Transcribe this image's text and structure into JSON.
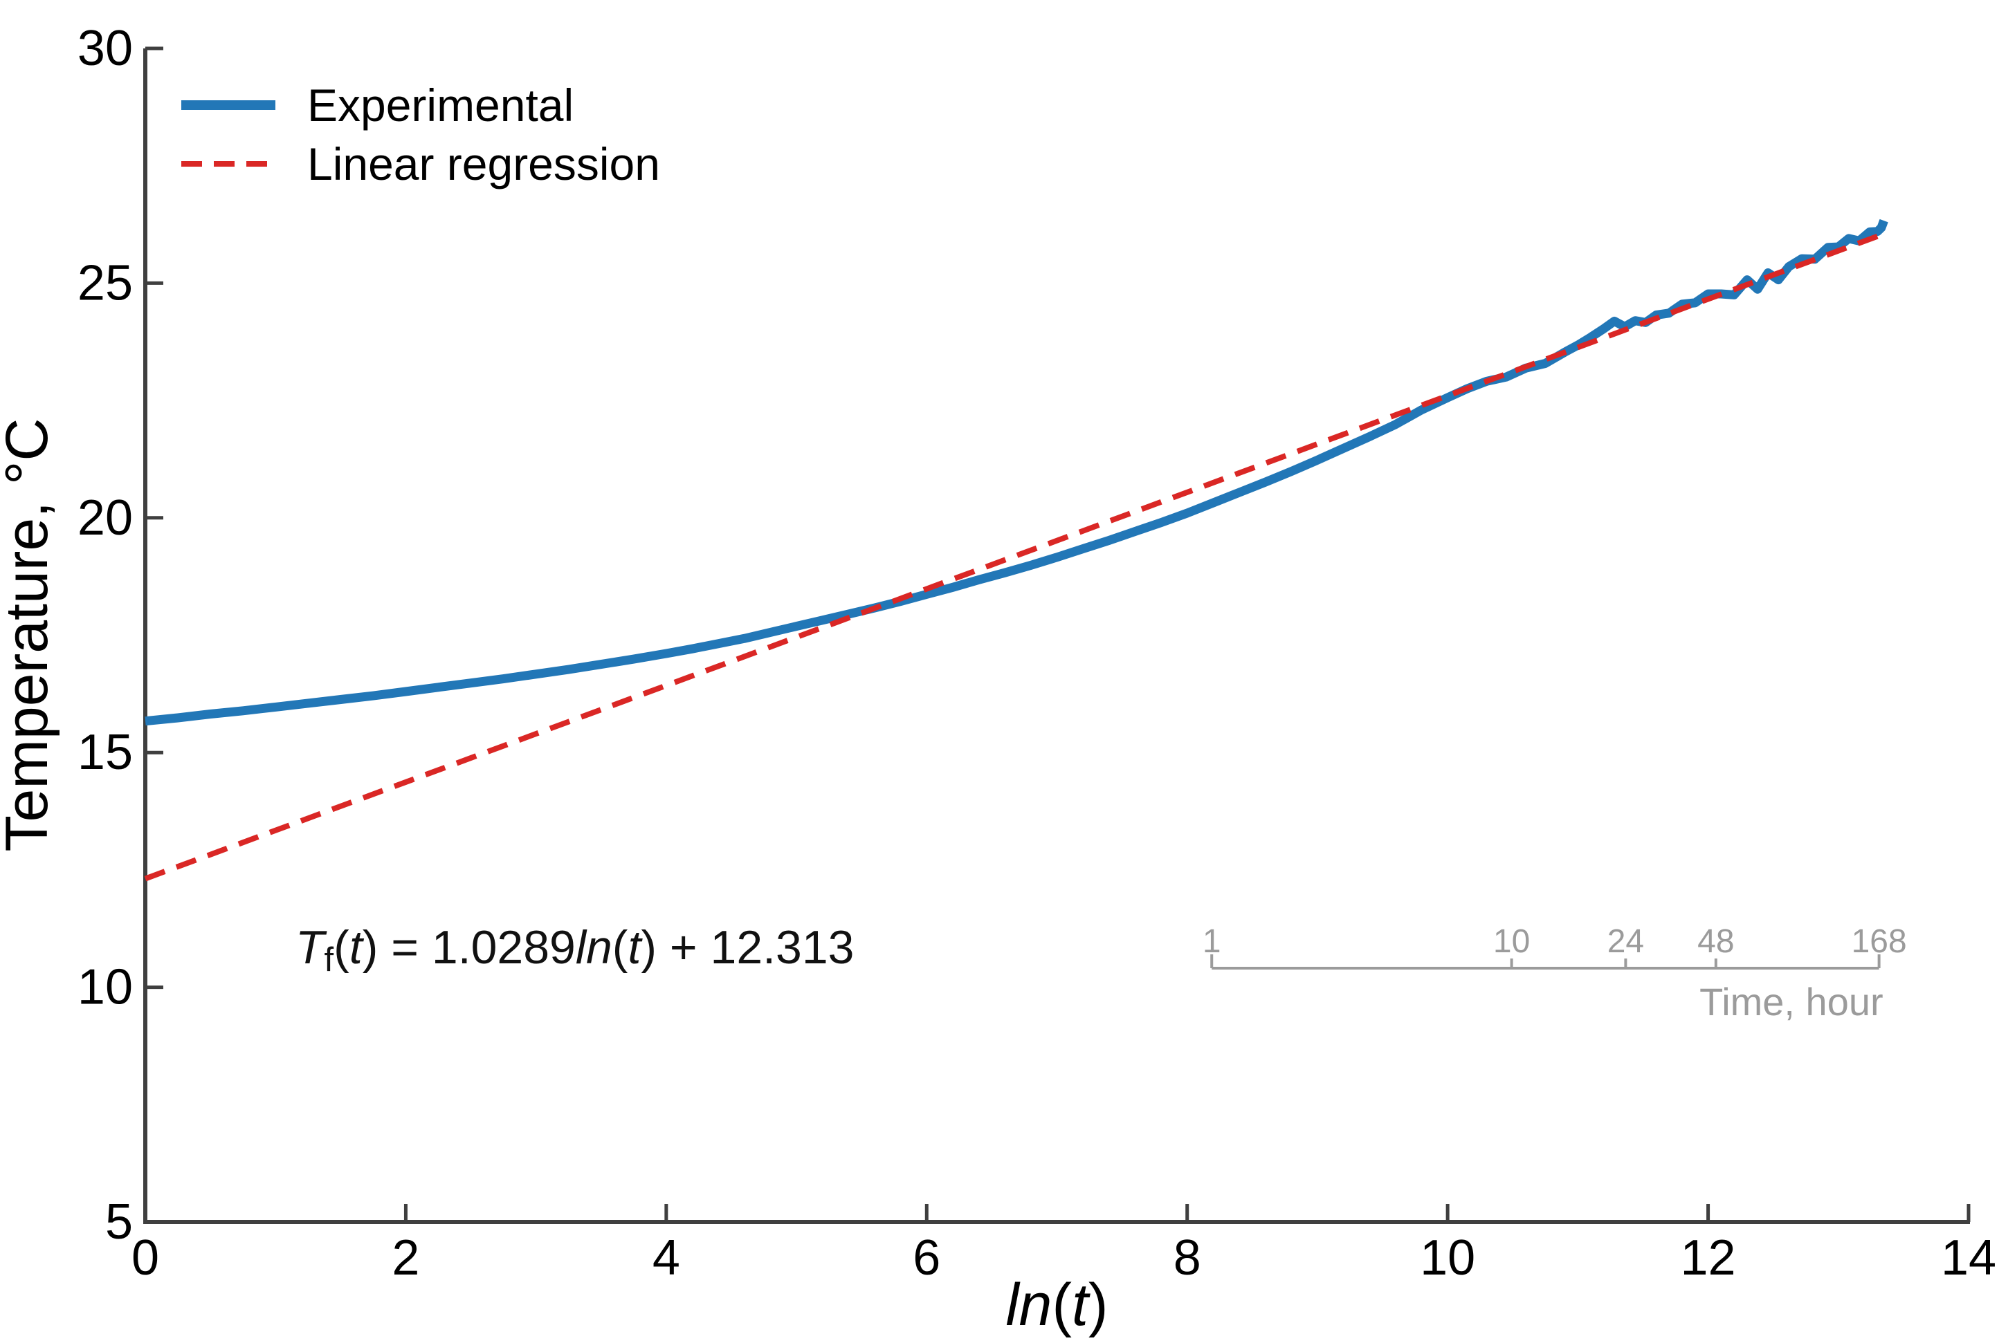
{
  "chart_data": {
    "type": "line",
    "title": "",
    "xlabel_parts": {
      "ln": "ln",
      "lp": "(",
      "t": "t",
      "rp": ")"
    },
    "ylabel": "Temperature, °C",
    "xlim": [
      0,
      14
    ],
    "ylim": [
      5,
      30
    ],
    "xticks": [
      0,
      2,
      4,
      6,
      8,
      10,
      12,
      14
    ],
    "yticks": [
      5,
      10,
      15,
      20,
      25,
      30
    ],
    "grid": false,
    "legend": {
      "position": "upper-left",
      "entries": [
        {
          "label": "Experimental",
          "style": "solid",
          "color": "#2277b7"
        },
        {
          "label": "Linear regression",
          "style": "dashed",
          "color": "#da2725"
        }
      ]
    },
    "series": [
      {
        "name": "Experimental",
        "type": "line",
        "color": "#2277b7",
        "points": [
          [
            0,
            15.67
          ],
          [
            0.25,
            15.74
          ],
          [
            0.5,
            15.82
          ],
          [
            0.75,
            15.89
          ],
          [
            1,
            15.97
          ],
          [
            1.25,
            16.05
          ],
          [
            1.5,
            16.13
          ],
          [
            1.75,
            16.21
          ],
          [
            2,
            16.3
          ],
          [
            2.25,
            16.39
          ],
          [
            2.5,
            16.48
          ],
          [
            2.75,
            16.57
          ],
          [
            3,
            16.67
          ],
          [
            3.25,
            16.77
          ],
          [
            3.5,
            16.88
          ],
          [
            3.75,
            16.99
          ],
          [
            4,
            17.11
          ],
          [
            4.2,
            17.21
          ],
          [
            4.4,
            17.32
          ],
          [
            4.6,
            17.43
          ],
          [
            4.8,
            17.56
          ],
          [
            5,
            17.69
          ],
          [
            5.2,
            17.82
          ],
          [
            5.4,
            17.95
          ],
          [
            5.6,
            18.08
          ],
          [
            5.8,
            18.22
          ],
          [
            6,
            18.37
          ],
          [
            6.2,
            18.52
          ],
          [
            6.4,
            18.68
          ],
          [
            6.6,
            18.83
          ],
          [
            6.8,
            18.99
          ],
          [
            7,
            19.16
          ],
          [
            7.2,
            19.34
          ],
          [
            7.4,
            19.52
          ],
          [
            7.6,
            19.71
          ],
          [
            7.8,
            19.9
          ],
          [
            8,
            20.1
          ],
          [
            8.2,
            20.32
          ],
          [
            8.4,
            20.54
          ],
          [
            8.6,
            20.76
          ],
          [
            8.8,
            20.99
          ],
          [
            9,
            21.23
          ],
          [
            9.2,
            21.48
          ],
          [
            9.4,
            21.73
          ],
          [
            9.6,
            21.99
          ],
          [
            9.8,
            22.3
          ],
          [
            10,
            22.56
          ],
          [
            10.15,
            22.75
          ],
          [
            10.3,
            22.91
          ],
          [
            10.45,
            23.0
          ],
          [
            10.6,
            23.19
          ],
          [
            10.75,
            23.29
          ],
          [
            10.9,
            23.53
          ],
          [
            11,
            23.68
          ],
          [
            11.1,
            23.85
          ],
          [
            11.2,
            24.03
          ],
          [
            11.28,
            24.19
          ],
          [
            11.36,
            24.07
          ],
          [
            11.44,
            24.2
          ],
          [
            11.52,
            24.16
          ],
          [
            11.6,
            24.32
          ],
          [
            11.7,
            24.36
          ],
          [
            11.8,
            24.55
          ],
          [
            11.9,
            24.58
          ],
          [
            12,
            24.77
          ],
          [
            12.1,
            24.77
          ],
          [
            12.2,
            24.75
          ],
          [
            12.3,
            25.07
          ],
          [
            12.38,
            24.87
          ],
          [
            12.46,
            25.22
          ],
          [
            12.54,
            25.07
          ],
          [
            12.62,
            25.35
          ],
          [
            12.72,
            25.52
          ],
          [
            12.82,
            25.51
          ],
          [
            12.92,
            25.76
          ],
          [
            13,
            25.77
          ],
          [
            13.08,
            25.95
          ],
          [
            13.16,
            25.9
          ],
          [
            13.24,
            26.09
          ],
          [
            13.3,
            26.1
          ],
          [
            13.33,
            26.18
          ],
          [
            13.35,
            26.33
          ]
        ]
      },
      {
        "name": "Linear regression",
        "type": "regression",
        "color": "#da2725",
        "slope": 1.0289,
        "intercept": 12.313,
        "x_start": 0,
        "x_end": 13.33
      }
    ],
    "secondary_axis": {
      "label": "Time, hour",
      "ticks_hours": [
        1,
        10,
        24,
        48,
        168
      ],
      "mapping": "x = ln(hours * 3600)",
      "color": "#9b9b9b"
    }
  },
  "equation": {
    "T": "T",
    "f": "f",
    "lp": "(",
    "t": "t",
    "rp": ")",
    "eq": " = ",
    "slope": "1.0289",
    "ln": "ln",
    "plus": " + ",
    "intercept": "12.313"
  },
  "colors": {
    "experimental": "#2277b7",
    "regression": "#da2725",
    "axis": "#3f3f3f",
    "tick_text": "#000000",
    "secondary": "#9b9b9b",
    "background": "#ffffff"
  }
}
